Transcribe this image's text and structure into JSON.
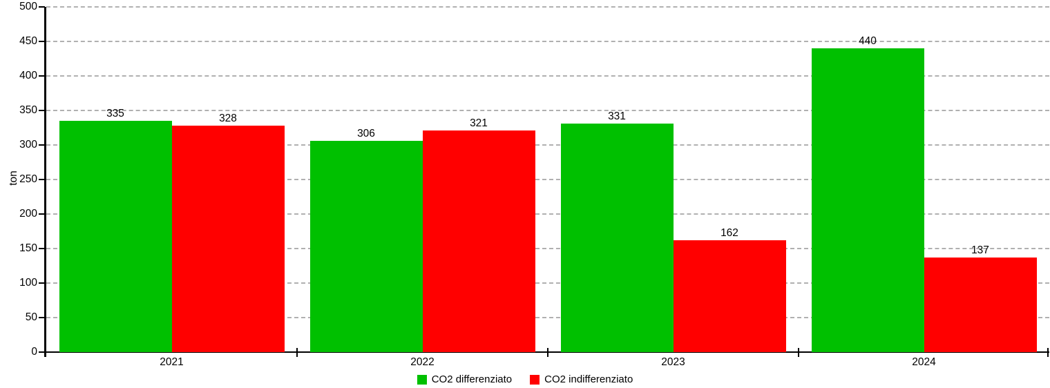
{
  "chart_data": {
    "type": "bar",
    "title": "",
    "xlabel": "",
    "ylabel": "ton",
    "ylim": [
      0,
      500
    ],
    "yticks": [
      0,
      50,
      100,
      150,
      200,
      250,
      300,
      350,
      400,
      450,
      500
    ],
    "categories": [
      "2021",
      "2022",
      "2023",
      "2024"
    ],
    "series": [
      {
        "name": "CO2 differenziato",
        "color": "#00c000",
        "values": [
          335,
          306,
          331,
          440
        ]
      },
      {
        "name": "CO2 indifferenziato",
        "color": "#ff0000",
        "values": [
          328,
          321,
          162,
          137
        ]
      }
    ],
    "grid": "horizontal-dashed",
    "grid_color": "#b0b0b0",
    "axis_color": "#000000",
    "legend_position": "bottom-center",
    "bar_value_labels": true
  }
}
